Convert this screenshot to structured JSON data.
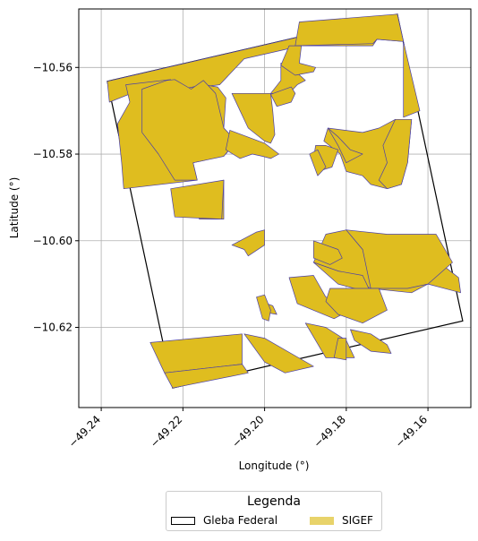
{
  "map": {
    "xlabel": "Longitude (°)",
    "ylabel": "Latitude (°)",
    "xlim": [
      -49.2455,
      -49.1495
    ],
    "ylim": [
      -10.6385,
      -10.5465
    ],
    "xticks": [
      -49.24,
      -49.22,
      -49.2,
      -49.18,
      -49.16
    ],
    "xtick_labels": [
      "−49.24",
      "−49.22",
      "−49.20",
      "−49.18",
      "−49.16"
    ],
    "yticks": [
      -10.56,
      -10.58,
      -10.6,
      -10.62
    ],
    "ytick_labels": [
      "−10.56",
      "−10.58",
      "−10.60",
      "−10.62"
    ],
    "grid": true,
    "colors": {
      "gleba_edge": "#000000",
      "sigef_fill": "#dfbd1f",
      "sigef_edge": "#4a3fa8",
      "grid": "#b0b0b0"
    }
  },
  "legend": {
    "title": "Legenda",
    "items": [
      {
        "label": "Gleba Federal",
        "style": "outline"
      },
      {
        "label": "SIGEF",
        "style": "fill"
      }
    ]
  },
  "gleba": [
    [
      -49.2385,
      -10.5632
    ],
    [
      -49.1675,
      -10.5477
    ],
    [
      -49.1515,
      -10.6185
    ],
    [
      -49.2225,
      -10.634
    ]
  ],
  "parcels": [
    [
      [
        -49.2385,
        -10.5632
      ],
      [
        -49.1675,
        -10.5477
      ],
      [
        -49.166,
        -10.554
      ],
      [
        -49.1725,
        -10.5535
      ],
      [
        -49.1735,
        -10.555
      ],
      [
        -49.191,
        -10.555
      ],
      [
        -49.205,
        -10.558
      ],
      [
        -49.211,
        -10.564
      ],
      [
        -49.22,
        -10.565
      ],
      [
        -49.224,
        -10.563
      ],
      [
        -49.23,
        -10.565
      ],
      [
        -49.238,
        -10.568
      ]
    ],
    [
      [
        -49.1915,
        -10.5495
      ],
      [
        -49.1675,
        -10.5477
      ],
      [
        -49.166,
        -10.554
      ],
      [
        -49.1725,
        -10.5535
      ],
      [
        -49.1735,
        -10.5545
      ],
      [
        -49.1925,
        -10.555
      ]
    ],
    [
      [
        -49.166,
        -10.554
      ],
      [
        -49.164,
        -10.562
      ],
      [
        -49.162,
        -10.57
      ],
      [
        -49.166,
        -10.5715
      ]
    ],
    [
      [
        -49.234,
        -10.564
      ],
      [
        -49.223,
        -10.5628
      ],
      [
        -49.223,
        -10.5645
      ],
      [
        -49.22,
        -10.565
      ],
      [
        -49.215,
        -10.564
      ],
      [
        -49.2115,
        -10.5645
      ],
      [
        -49.2095,
        -10.567
      ],
      [
        -49.21,
        -10.574
      ],
      [
        -49.207,
        -10.577
      ],
      [
        -49.2095,
        -10.58
      ],
      [
        -49.215,
        -10.5815
      ],
      [
        -49.2175,
        -10.582
      ],
      [
        -49.2165,
        -10.586
      ],
      [
        -49.2345,
        -10.588
      ],
      [
        -49.235,
        -10.582
      ],
      [
        -49.236,
        -10.573
      ],
      [
        -49.233,
        -10.568
      ]
    ],
    [
      [
        -49.23,
        -10.565
      ],
      [
        -49.224,
        -10.563
      ],
      [
        -49.222,
        -10.5628
      ],
      [
        -49.218,
        -10.565
      ],
      [
        -49.215,
        -10.563
      ],
      [
        -49.212,
        -10.566
      ],
      [
        -49.21,
        -10.574
      ],
      [
        -49.207,
        -10.577
      ],
      [
        -49.21,
        -10.5805
      ],
      [
        -49.215,
        -10.5815
      ],
      [
        -49.2175,
        -10.582
      ],
      [
        -49.2165,
        -10.586
      ],
      [
        -49.222,
        -10.586
      ],
      [
        -49.226,
        -10.58
      ],
      [
        -49.23,
        -10.575
      ]
    ],
    [
      [
        -49.2165,
        -10.588
      ],
      [
        -49.216,
        -10.595
      ],
      [
        -49.21,
        -10.595
      ],
      [
        -49.21,
        -10.586
      ]
    ],
    [
      [
        -49.223,
        -10.588
      ],
      [
        -49.222,
        -10.5945
      ],
      [
        -49.2105,
        -10.595
      ],
      [
        -49.21,
        -10.586
      ]
    ],
    [
      [
        -49.208,
        -10.566
      ],
      [
        -49.206,
        -10.57
      ],
      [
        -49.204,
        -10.574
      ],
      [
        -49.2,
        -10.577
      ],
      [
        -49.1985,
        -10.5775
      ],
      [
        -49.1975,
        -10.5755
      ],
      [
        -49.198,
        -10.57
      ],
      [
        -49.1985,
        -10.566
      ]
    ],
    [
      [
        -49.2085,
        -10.5745
      ],
      [
        -49.2,
        -10.5775
      ],
      [
        -49.1965,
        -10.58
      ],
      [
        -49.1985,
        -10.581
      ],
      [
        -49.2005,
        -10.5805
      ],
      [
        -49.203,
        -10.58
      ],
      [
        -49.206,
        -10.581
      ],
      [
        -49.2095,
        -10.579
      ]
    ],
    [
      [
        -49.1985,
        -10.566
      ],
      [
        -49.194,
        -10.566
      ],
      [
        -49.192,
        -10.564
      ],
      [
        -49.19,
        -10.563
      ],
      [
        -49.1935,
        -10.56
      ],
      [
        -49.196,
        -10.559
      ],
      [
        -49.196,
        -10.563
      ]
    ],
    [
      [
        -49.1985,
        -10.5662
      ],
      [
        -49.197,
        -10.569
      ],
      [
        -49.1935,
        -10.568
      ],
      [
        -49.1925,
        -10.566
      ],
      [
        -49.1935,
        -10.5645
      ]
    ],
    [
      [
        -49.194,
        -10.555
      ],
      [
        -49.191,
        -10.555
      ],
      [
        -49.1915,
        -10.559
      ],
      [
        -49.1875,
        -10.56
      ],
      [
        -49.188,
        -10.561
      ],
      [
        -49.1925,
        -10.5618
      ],
      [
        -49.196,
        -10.5595
      ]
    ],
    [
      [
        -49.1845,
        -10.574
      ],
      [
        -49.176,
        -10.575
      ],
      [
        -49.172,
        -10.574
      ],
      [
        -49.168,
        -10.572
      ],
      [
        -49.164,
        -10.572
      ],
      [
        -49.165,
        -10.582
      ],
      [
        -49.1665,
        -10.587
      ],
      [
        -49.17,
        -10.588
      ],
      [
        -49.174,
        -10.587
      ],
      [
        -49.176,
        -10.585
      ],
      [
        -49.18,
        -10.584
      ],
      [
        -49.1815,
        -10.58
      ],
      [
        -49.1855,
        -10.577
      ]
    ],
    [
      [
        -49.168,
        -10.572
      ],
      [
        -49.164,
        -10.572
      ],
      [
        -49.165,
        -10.582
      ],
      [
        -49.1665,
        -10.587
      ],
      [
        -49.17,
        -10.588
      ],
      [
        -49.172,
        -10.586
      ],
      [
        -49.17,
        -10.582
      ],
      [
        -49.171,
        -10.578
      ]
    ],
    [
      [
        -49.1845,
        -10.574
      ],
      [
        -49.182,
        -10.576
      ],
      [
        -49.179,
        -10.579
      ],
      [
        -49.176,
        -10.58
      ],
      [
        -49.18,
        -10.582
      ],
      [
        -49.182,
        -10.578
      ]
    ],
    [
      [
        -49.1875,
        -10.578
      ],
      [
        -49.185,
        -10.578
      ],
      [
        -49.182,
        -10.579
      ],
      [
        -49.1835,
        -10.583
      ],
      [
        -49.187,
        -10.584
      ],
      [
        -49.188,
        -10.581
      ]
    ],
    [
      [
        -49.187,
        -10.579
      ],
      [
        -49.189,
        -10.58
      ],
      [
        -49.187,
        -10.585
      ],
      [
        -49.185,
        -10.583
      ]
    ],
    [
      [
        -49.202,
        -10.598
      ],
      [
        -49.2,
        -10.5975
      ],
      [
        -49.2,
        -10.601
      ],
      [
        -49.204,
        -10.6035
      ],
      [
        -49.205,
        -10.602
      ],
      [
        -49.208,
        -10.601
      ],
      [
        -49.206,
        -10.6
      ]
    ],
    [
      [
        -49.185,
        -10.5985
      ],
      [
        -49.18,
        -10.5975
      ],
      [
        -49.176,
        -10.602
      ],
      [
        -49.17,
        -10.6025
      ],
      [
        -49.16,
        -10.603
      ],
      [
        -49.1525,
        -10.6085
      ],
      [
        -49.152,
        -10.612
      ],
      [
        -49.16,
        -10.61
      ],
      [
        -49.164,
        -10.612
      ],
      [
        -49.174,
        -10.611
      ],
      [
        -49.182,
        -10.607
      ],
      [
        -49.188,
        -10.605
      ]
    ],
    [
      [
        -49.18,
        -10.5975
      ],
      [
        -49.176,
        -10.602
      ],
      [
        -49.174,
        -10.611
      ],
      [
        -49.165,
        -10.611
      ],
      [
        -49.16,
        -10.61
      ],
      [
        -49.154,
        -10.605
      ],
      [
        -49.158,
        -10.5985
      ],
      [
        -49.17,
        -10.5985
      ]
    ],
    [
      [
        -49.188,
        -10.6
      ],
      [
        -49.182,
        -10.602
      ],
      [
        -49.181,
        -10.604
      ],
      [
        -49.184,
        -10.6055
      ],
      [
        -49.188,
        -10.604
      ]
    ],
    [
      [
        -49.188,
        -10.605
      ],
      [
        -49.182,
        -10.607
      ],
      [
        -49.176,
        -10.608
      ],
      [
        -49.174,
        -10.612
      ],
      [
        -49.182,
        -10.61
      ]
    ],
    [
      [
        -49.188,
        -10.608
      ],
      [
        -49.185,
        -10.613
      ],
      [
        -49.181,
        -10.614
      ],
      [
        -49.179,
        -10.616
      ],
      [
        -49.183,
        -10.618
      ],
      [
        -49.192,
        -10.6145
      ],
      [
        -49.194,
        -10.6085
      ]
    ],
    [
      [
        -49.184,
        -10.611
      ],
      [
        -49.172,
        -10.611
      ],
      [
        -49.17,
        -10.616
      ],
      [
        -49.176,
        -10.619
      ],
      [
        -49.182,
        -10.617
      ],
      [
        -49.185,
        -10.614
      ]
    ],
    [
      [
        -49.201,
        -10.614
      ],
      [
        -49.198,
        -10.615
      ],
      [
        -49.197,
        -10.617
      ],
      [
        -49.2,
        -10.6165
      ]
    ],
    [
      [
        -49.202,
        -10.613
      ],
      [
        -49.2,
        -10.6125
      ],
      [
        -49.1985,
        -10.616
      ],
      [
        -49.199,
        -10.6185
      ],
      [
        -49.2005,
        -10.618
      ]
    ],
    [
      [
        -49.19,
        -10.619
      ],
      [
        -49.185,
        -10.627
      ],
      [
        -49.178,
        -10.627
      ],
      [
        -49.18,
        -10.623
      ],
      [
        -49.185,
        -10.62
      ]
    ],
    [
      [
        -49.179,
        -10.6205
      ],
      [
        -49.174,
        -10.6215
      ],
      [
        -49.17,
        -10.624
      ],
      [
        -49.169,
        -10.626
      ],
      [
        -49.174,
        -10.6255
      ],
      [
        -49.178,
        -10.623
      ]
    ],
    [
      [
        -49.182,
        -10.6225
      ],
      [
        -49.18,
        -10.6225
      ],
      [
        -49.18,
        -10.6275
      ],
      [
        -49.183,
        -10.627
      ]
    ],
    [
      [
        -49.205,
        -10.6215
      ],
      [
        -49.2,
        -10.6225
      ],
      [
        -49.188,
        -10.629
      ],
      [
        -49.195,
        -10.6305
      ],
      [
        -49.2,
        -10.628
      ]
    ],
    [
      [
        -49.228,
        -10.6235
      ],
      [
        -49.2055,
        -10.6215
      ],
      [
        -49.2055,
        -10.6285
      ],
      [
        -49.2245,
        -10.6305
      ]
    ],
    [
      [
        -49.2245,
        -10.6305
      ],
      [
        -49.2055,
        -10.6285
      ],
      [
        -49.204,
        -10.6305
      ],
      [
        -49.2225,
        -10.634
      ]
    ]
  ]
}
